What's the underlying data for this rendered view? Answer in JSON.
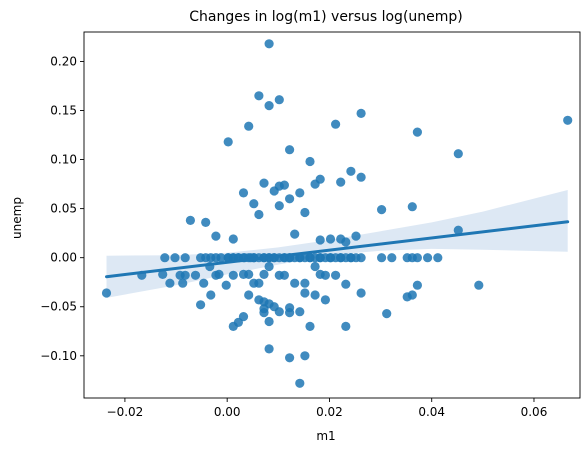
{
  "chart_data": {
    "type": "scatter",
    "title": "Changes in log(m1) versus log(unemp)",
    "xlabel": "m1",
    "ylabel": "unemp",
    "xlim": [
      -0.028,
      0.069
    ],
    "ylim": [
      -0.143,
      0.23
    ],
    "xticks": [
      -0.02,
      0.0,
      0.02,
      0.04,
      0.06
    ],
    "xtick_labels": [
      "−0.02",
      "0.00",
      "0.02",
      "0.04",
      "0.06"
    ],
    "yticks": [
      -0.1,
      -0.05,
      0.0,
      0.05,
      0.1,
      0.15,
      0.2
    ],
    "ytick_labels": [
      "−0.10",
      "−0.05",
      "0.00",
      "0.05",
      "0.10",
      "0.15",
      "0.20"
    ],
    "grid": false,
    "legend": "none",
    "colors": {
      "points": "#1f77b4",
      "line": "#1f77b4",
      "band": "#c6d9ec"
    },
    "regression": {
      "x": [
        -0.0236,
        0.0666
      ],
      "y": [
        -0.0194,
        0.0366
      ],
      "ci_x": [
        -0.0236,
        -0.01,
        0.0,
        0.01,
        0.02,
        0.03,
        0.04,
        0.05,
        0.0666
      ],
      "ci_upper": [
        0.002,
        0.0025,
        0.005,
        0.0105,
        0.018,
        0.027,
        0.036,
        0.047,
        0.069
      ],
      "ci_lower": [
        -0.041,
        -0.028,
        -0.017,
        -0.007,
        0.0025,
        0.007,
        0.009,
        0.008,
        0.006
      ]
    },
    "points": {
      "x": [
        -0.0236,
        -0.0167,
        -0.0126,
        -0.0112,
        -0.0087,
        -0.0082,
        -0.0062,
        -0.0046,
        -0.0034,
        -0.0016,
        0.0002,
        0.0012,
        0.0022,
        0.0034,
        0.0046,
        0.0052,
        0.0072,
        0.0082,
        0.0092,
        0.0112,
        0.0122,
        0.0142,
        0.0162,
        0.0182,
        0.0202,
        0.0222,
        0.0242,
        0.0262,
        0.0302,
        0.0322,
        0.0352,
        0.0362,
        0.0372,
        0.0392,
        0.0412,
        0.0452,
        0.0492,
        0.0666,
        0.0082,
        0.0062,
        0.0102,
        0.0122,
        0.0212,
        0.0262,
        0.0372,
        0.0452,
        -0.0122,
        -0.0102,
        -0.0082,
        -0.0072,
        -0.0052,
        -0.0042,
        -0.0032,
        -0.0022,
        -0.0012,
        0.0002,
        0.0012,
        0.0022,
        0.0032,
        0.0042,
        0.0052,
        0.0062,
        0.0072,
        0.0082,
        0.0092,
        0.0102,
        0.0112,
        0.0122,
        0.0132,
        0.0142,
        0.0152,
        0.0162,
        0.0172,
        0.0182,
        0.0192,
        0.0202,
        0.0212,
        0.0222,
        0.0232,
        0.0242,
        0.0252,
        0.0002,
        0.0042,
        0.0082,
        0.0102,
        0.0142,
        0.0162,
        0.0182,
        0.0222,
        0.0242,
        0.0262,
        0.0302,
        0.0362,
        -0.0092,
        -0.0042,
        -0.0022,
        0.0012,
        0.0032,
        0.0052,
        0.0062,
        0.0072,
        0.0092,
        0.0102,
        0.0112,
        0.0122,
        0.0132,
        0.0152,
        0.0172,
        0.0182,
        0.0202,
        0.0222,
        0.0232,
        0.0252,
        -0.0022,
        -0.0002,
        0.0012,
        0.0032,
        0.0042,
        0.0052,
        0.0062,
        0.0072,
        0.0082,
        0.0102,
        0.0112,
        0.0132,
        0.0152,
        0.0172,
        0.0182,
        0.0192,
        0.0212,
        0.0232,
        0.0022,
        0.0042,
        0.0062,
        0.0072,
        0.0082,
        0.0092,
        0.0102,
        0.0122,
        0.0142,
        0.0152,
        0.0172,
        0.0192,
        0.0082,
        0.0122,
        0.0142,
        0.0152,
        0.0082,
        0.0072,
        -0.0052,
        -0.0032,
        0.0012,
        0.0032,
        0.0072,
        0.0122,
        0.0162,
        0.0232,
        0.0262,
        0.0312,
        0.0352,
        0.0362,
        0.0372
      ],
      "y": [
        -0.036,
        -0.018,
        -0.017,
        -0.026,
        -0.026,
        -0.018,
        -0.018,
        -0.026,
        -0.009,
        -0.017,
        0.0,
        0.0,
        0.0,
        0.0,
        0.0,
        0.0,
        0.0,
        0.0,
        0.0,
        0.0,
        0.0,
        0.0,
        0.0,
        0.0,
        0.0,
        0.0,
        0.0,
        0.0,
        0.0,
        0.0,
        0.0,
        0.0,
        0.0,
        0.0,
        0.0,
        0.028,
        -0.028,
        0.14,
        0.218,
        0.165,
        0.161,
        0.11,
        0.136,
        0.147,
        0.128,
        0.106,
        0.0,
        0.0,
        0.0,
        0.038,
        0.0,
        0.0,
        0.0,
        0.0,
        0.0,
        0.0,
        0.0,
        0.0,
        0.0,
        0.0,
        0.0,
        0.0,
        0.0,
        0.0,
        0.0,
        0.0,
        0.0,
        0.0,
        0.0,
        0.0,
        0.0,
        0.0,
        0.0,
        0.0,
        0.0,
        0.0,
        0.0,
        0.0,
        0.0,
        0.0,
        0.0,
        0.118,
        0.134,
        0.155,
        0.073,
        0.066,
        0.098,
        0.08,
        0.077,
        0.088,
        0.082,
        0.049,
        0.052,
        -0.018,
        0.036,
        0.022,
        0.019,
        0.066,
        0.055,
        0.044,
        0.076,
        0.068,
        0.053,
        0.074,
        0.06,
        0.024,
        0.046,
        0.075,
        0.018,
        0.019,
        0.019,
        0.016,
        0.022,
        -0.018,
        -0.028,
        -0.018,
        -0.017,
        -0.017,
        -0.026,
        -0.026,
        -0.017,
        -0.009,
        -0.018,
        -0.018,
        -0.026,
        -0.026,
        -0.009,
        -0.017,
        -0.018,
        -0.018,
        -0.027,
        -0.066,
        -0.038,
        -0.043,
        -0.045,
        -0.047,
        -0.05,
        -0.055,
        -0.051,
        -0.055,
        -0.036,
        -0.038,
        -0.043,
        -0.093,
        -0.102,
        -0.128,
        -0.1,
        -0.065,
        -0.056,
        -0.048,
        -0.038,
        -0.07,
        -0.06,
        -0.052,
        -0.056,
        -0.07,
        -0.07,
        -0.036,
        -0.057,
        -0.04,
        -0.038,
        -0.028
      ]
    }
  }
}
